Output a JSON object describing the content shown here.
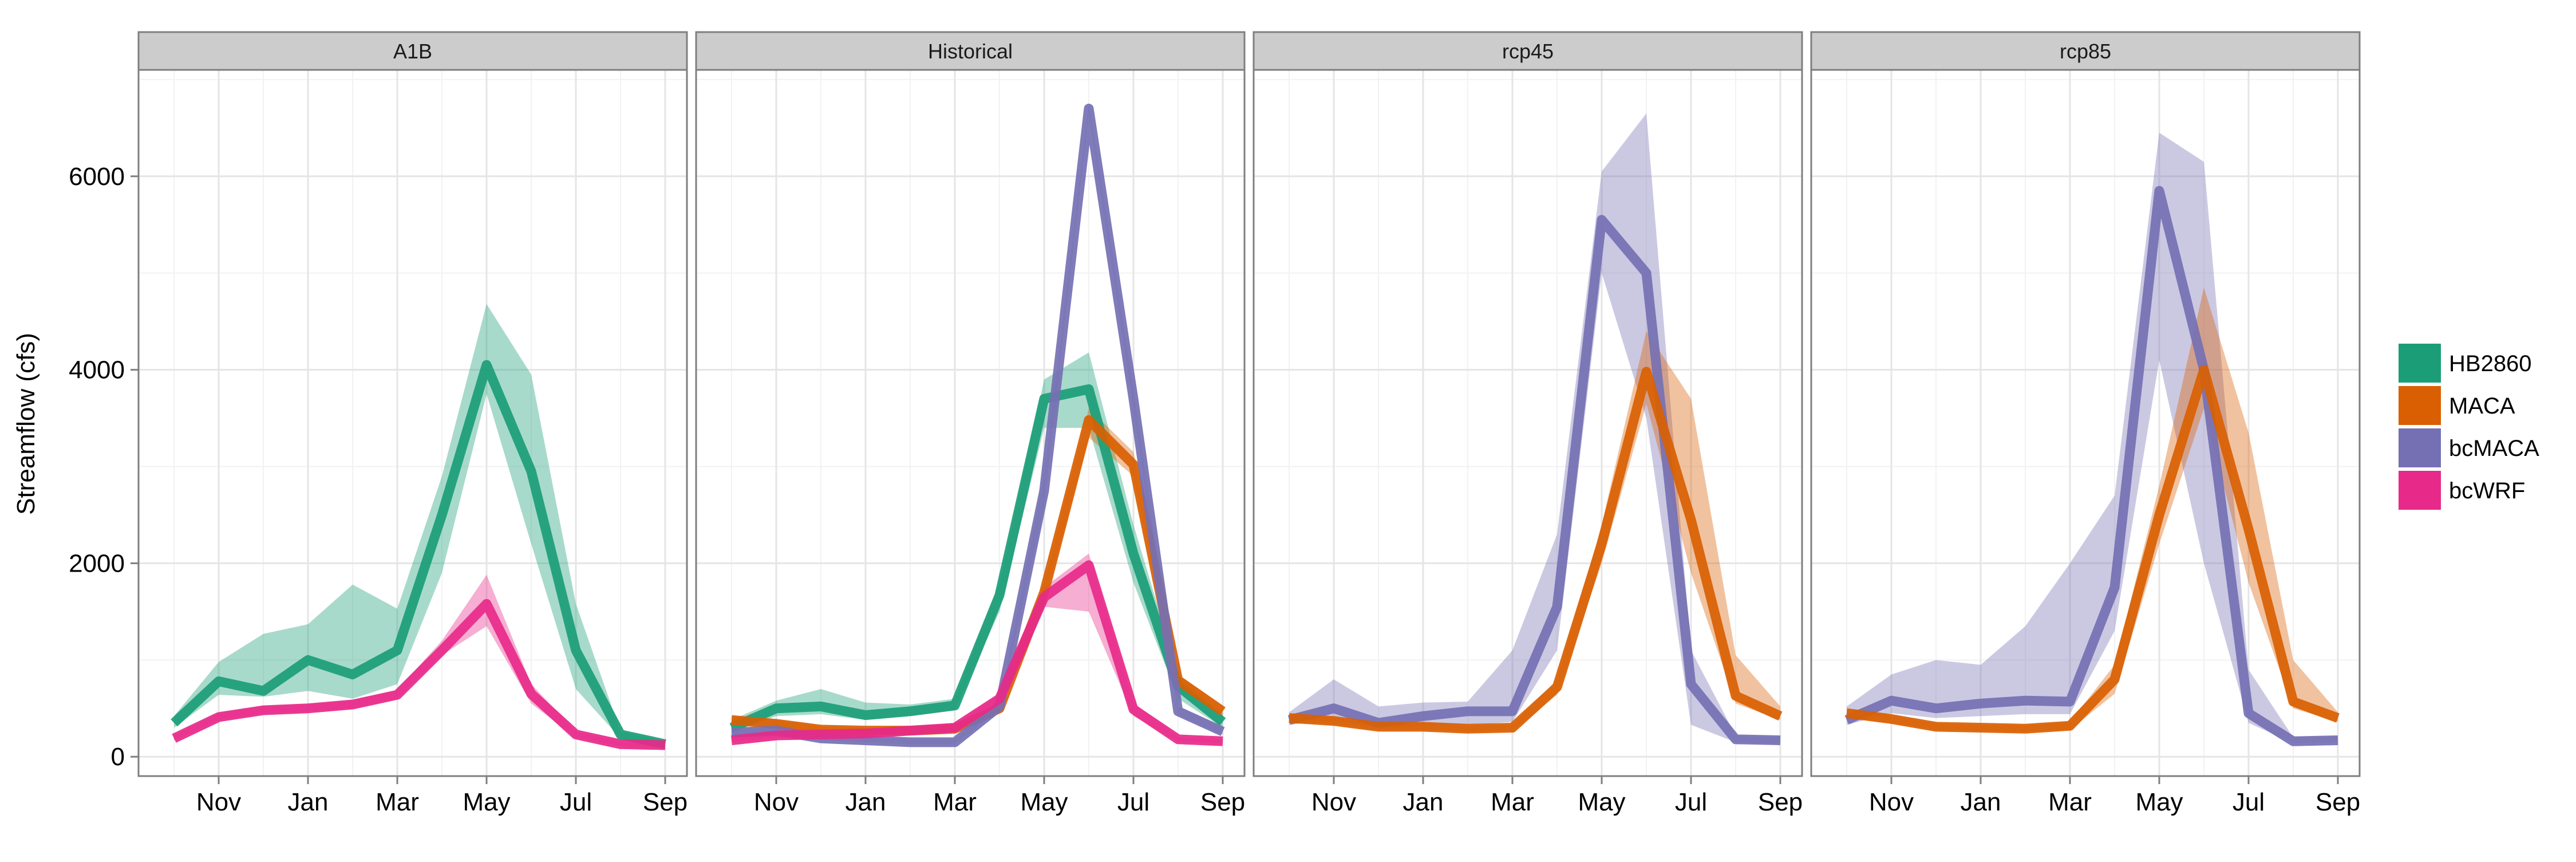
{
  "chart_data": {
    "type": "line",
    "ylabel": "Streamflow (cfs)",
    "xlabel": "",
    "ylim": [
      -200,
      7100
    ],
    "yticks": [
      0,
      2000,
      4000,
      6000
    ],
    "x_ticks": [
      "Nov",
      "Jan",
      "Mar",
      "May",
      "Jul",
      "Sep"
    ],
    "months": [
      "Oct",
      "Nov",
      "Dec",
      "Jan",
      "Feb",
      "Mar",
      "Apr",
      "May",
      "Jun",
      "Jul",
      "Aug",
      "Sep"
    ],
    "grid": true,
    "legend": {
      "position": "right",
      "items": [
        {
          "name": "HB2860",
          "color": "#1b9e77"
        },
        {
          "name": "MACA",
          "color": "#d95f02"
        },
        {
          "name": "bcMACA",
          "color": "#7570b3"
        },
        {
          "name": "bcWRF",
          "color": "#e7298a"
        }
      ]
    },
    "panels": [
      {
        "title": "A1B",
        "series": [
          {
            "name": "HB2860",
            "values": [
              350,
              780,
              680,
              1000,
              850,
              1100,
              2500,
              4050,
              2950,
              1100,
              230,
              130
            ],
            "lower": [
              300,
              640,
              620,
              680,
              600,
              750,
              1900,
              3750,
              2200,
              700,
              190,
              110
            ],
            "upper": [
              420,
              980,
              1270,
              1370,
              1780,
              1530,
              2900,
              4680,
              3950,
              1580,
              260,
              160
            ]
          },
          {
            "name": "bcWRF",
            "values": [
              190,
              410,
              480,
              500,
              540,
              640,
              1100,
              1580,
              650,
              230,
              130,
              120
            ],
            "lower": [
              170,
              380,
              450,
              470,
              500,
              600,
              1050,
              1350,
              550,
              200,
              110,
              100
            ],
            "upper": [
              220,
              450,
              520,
              540,
              580,
              690,
              1200,
              1880,
              750,
              260,
              150,
              140
            ]
          }
        ]
      },
      {
        "title": "Historical",
        "series": [
          {
            "name": "HB2860",
            "values": [
              300,
              500,
              520,
              430,
              470,
              530,
              1670,
              3700,
              3800,
              2100,
              730,
              360
            ],
            "lower": [
              250,
              420,
              440,
              380,
              420,
              480,
              1500,
              3400,
              3400,
              1800,
              600,
              300
            ],
            "upper": [
              380,
              580,
              700,
              560,
              540,
              600,
              1800,
              3900,
              4180,
              2400,
              850,
              450
            ]
          },
          {
            "name": "MACA",
            "values": [
              380,
              340,
              280,
              270,
              270,
              290,
              500,
              1700,
              3480,
              3020,
              790,
              470
            ],
            "lower": [
              340,
              300,
              250,
              240,
              240,
              260,
              460,
              1600,
              3300,
              2900,
              700,
              420
            ],
            "upper": [
              420,
              380,
              310,
              300,
              300,
              320,
              540,
              1800,
              3600,
              3150,
              850,
              520
            ]
          },
          {
            "name": "bcMACA",
            "values": [
              250,
              270,
              190,
              170,
              150,
              150,
              520,
              2750,
              6700,
              3700,
              470,
              260
            ],
            "lower": [
              220,
              240,
              170,
              150,
              130,
              130,
              480,
              2600,
              6650,
              3600,
              430,
              230
            ],
            "upper": [
              290,
              300,
              220,
              200,
              180,
              180,
              560,
              2900,
              6760,
              3800,
              520,
              300
            ]
          },
          {
            "name": "bcWRF",
            "values": [
              170,
              220,
              230,
              240,
              270,
              300,
              600,
              1650,
              1980,
              490,
              180,
              160
            ],
            "lower": [
              150,
              200,
              210,
              220,
              250,
              280,
              550,
              1550,
              1500,
              420,
              160,
              140
            ],
            "upper": [
              200,
              250,
              260,
              270,
              300,
              330,
              650,
              1750,
              2100,
              560,
              200,
              180
            ]
          }
        ]
      },
      {
        "title": "rcp45",
        "series": [
          {
            "name": "bcMACA",
            "values": [
              380,
              500,
              350,
              420,
              470,
              470,
              1550,
              5550,
              5000,
              750,
              180,
              170
            ],
            "lower": [
              330,
              380,
              300,
              320,
              330,
              360,
              1100,
              5000,
              3500,
              330,
              150,
              140
            ],
            "upper": [
              460,
              800,
              520,
              560,
              570,
              1100,
              2300,
              6050,
              6650,
              1100,
              220,
              200
            ]
          },
          {
            "name": "MACA",
            "values": [
              400,
              370,
              310,
              310,
              290,
              300,
              720,
              2200,
              3980,
              2450,
              630,
              420
            ],
            "lower": [
              360,
              340,
              280,
              280,
              260,
              270,
              640,
              2000,
              3650,
              1900,
              550,
              380
            ],
            "upper": [
              440,
              400,
              340,
              340,
              320,
              330,
              800,
              2400,
              4400,
              3700,
              1050,
              520
            ]
          }
        ]
      },
      {
        "title": "rcp85",
        "series": [
          {
            "name": "bcMACA",
            "values": [
              380,
              580,
              500,
              550,
              580,
              570,
              1750,
              5850,
              4000,
              450,
              160,
              170
            ],
            "lower": [
              330,
              450,
              400,
              420,
              440,
              440,
              1300,
              4100,
              2000,
              350,
              140,
              150
            ],
            "upper": [
              520,
              850,
              1000,
              950,
              1350,
              2000,
              2700,
              6450,
              6150,
              900,
              200,
              210
            ]
          },
          {
            "name": "MACA",
            "values": [
              450,
              390,
              310,
              300,
              290,
              320,
              800,
              2500,
              4000,
              2350,
              570,
              400
            ],
            "lower": [
              400,
              350,
              280,
              270,
              260,
              280,
              650,
              2200,
              3600,
              1800,
              500,
              360
            ],
            "upper": [
              500,
              430,
              340,
              330,
              320,
              360,
              950,
              2800,
              4850,
              3350,
              1000,
              460
            ]
          }
        ]
      }
    ]
  }
}
